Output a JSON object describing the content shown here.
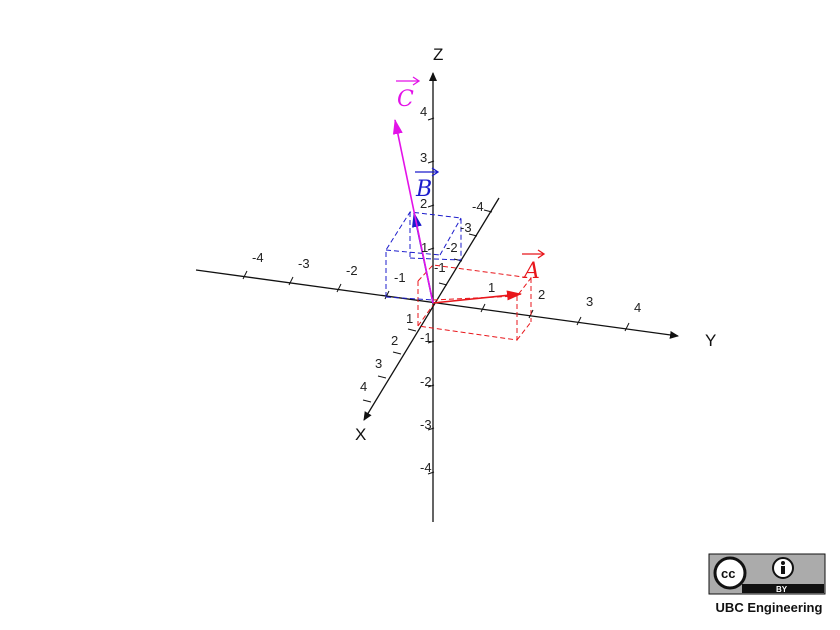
{
  "axes": {
    "x": {
      "label": "X",
      "ticks": [
        "1",
        "2",
        "3",
        "4"
      ]
    },
    "y": {
      "label": "Y",
      "ticks": [
        "-4",
        "-3",
        "-2",
        "1",
        "2",
        "3",
        "4"
      ]
    },
    "z": {
      "label": "Z",
      "ticks": [
        "-4",
        "-3",
        "-2",
        "-1",
        "1",
        "2",
        "3",
        "4"
      ]
    },
    "x_back_ticks": [
      "-1",
      "-2",
      "-3",
      "-4"
    ],
    "y_inner_tick": "-1"
  },
  "vectors": [
    {
      "name": "A",
      "label": "A",
      "color": "#e8161b"
    },
    {
      "name": "B",
      "label": "B",
      "color": "#1c1ccc"
    },
    {
      "name": "C",
      "label": "C",
      "color": "#e312e8"
    }
  ],
  "colors": {
    "axis": "#111111"
  },
  "license_badge": {
    "text": "BY",
    "icons": [
      "cc-icon",
      "attribution-icon"
    ]
  },
  "credit": "UBC Engineering"
}
